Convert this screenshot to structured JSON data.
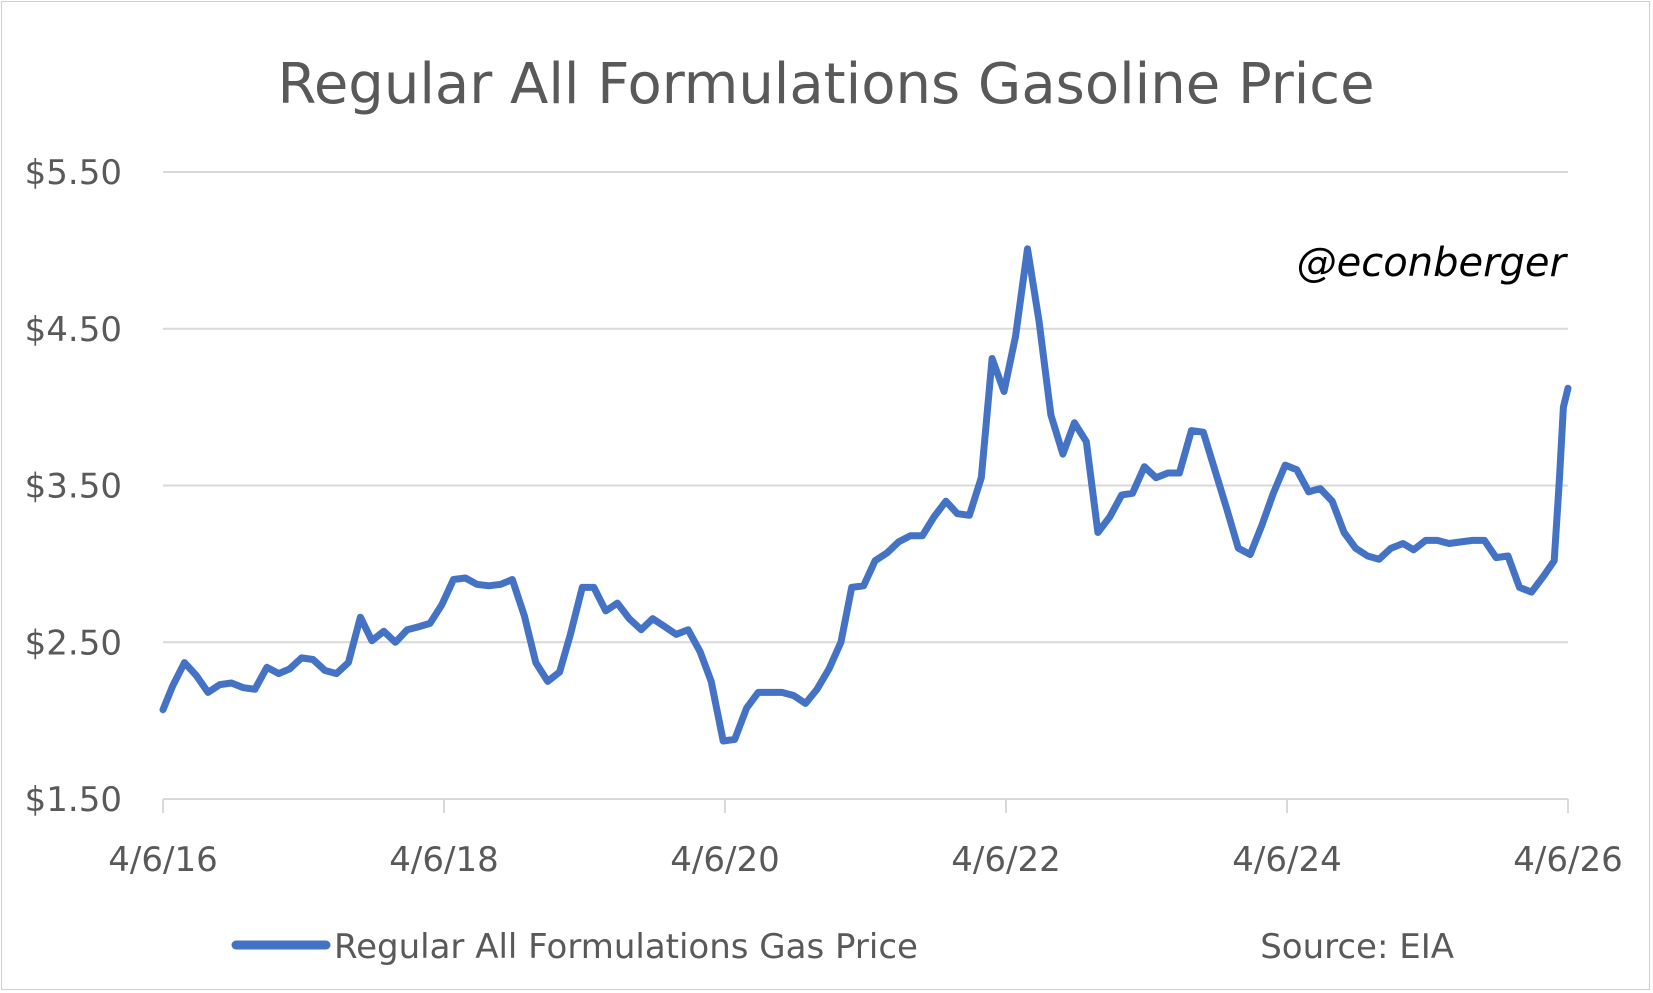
{
  "chart_data": {
    "type": "line",
    "title": "Regular All Formulations Gasoline Price",
    "annotation": "@econberger",
    "source": "Source: EIA",
    "xlabel": "",
    "ylabel": "",
    "x_ticks": [
      "4/6/16",
      "4/6/18",
      "4/6/20",
      "4/6/22",
      "4/6/24",
      "4/6/26"
    ],
    "y_ticks": [
      "$1.50",
      "$2.50",
      "$3.50",
      "$4.50",
      "$5.50"
    ],
    "ylim": [
      1.5,
      5.5
    ],
    "xlim": [
      "2016-04-06",
      "2026-04-06"
    ],
    "grid": true,
    "legend_position": "bottom",
    "colors": {
      "series": "#4472C4",
      "grid": "#d9d9d9",
      "text": "#595959"
    },
    "series": [
      {
        "name": "Regular All Formulations Gas Price",
        "points": [
          [
            "2016-04-06",
            2.07
          ],
          [
            "2016-05-01",
            2.22
          ],
          [
            "2016-06-01",
            2.37
          ],
          [
            "2016-07-01",
            2.29
          ],
          [
            "2016-08-01",
            2.18
          ],
          [
            "2016-09-01",
            2.23
          ],
          [
            "2016-10-01",
            2.24
          ],
          [
            "2016-11-01",
            2.21
          ],
          [
            "2016-12-01",
            2.2
          ],
          [
            "2017-01-01",
            2.34
          ],
          [
            "2017-02-01",
            2.3
          ],
          [
            "2017-03-01",
            2.33
          ],
          [
            "2017-04-01",
            2.4
          ],
          [
            "2017-05-01",
            2.39
          ],
          [
            "2017-06-01",
            2.32
          ],
          [
            "2017-07-01",
            2.3
          ],
          [
            "2017-08-01",
            2.37
          ],
          [
            "2017-09-01",
            2.66
          ],
          [
            "2017-10-01",
            2.51
          ],
          [
            "2017-11-01",
            2.57
          ],
          [
            "2017-12-01",
            2.5
          ],
          [
            "2018-01-01",
            2.58
          ],
          [
            "2018-02-01",
            2.6
          ],
          [
            "2018-03-01",
            2.62
          ],
          [
            "2018-04-01",
            2.74
          ],
          [
            "2018-05-01",
            2.9
          ],
          [
            "2018-06-01",
            2.91
          ],
          [
            "2018-07-01",
            2.87
          ],
          [
            "2018-08-01",
            2.86
          ],
          [
            "2018-09-01",
            2.87
          ],
          [
            "2018-10-01",
            2.9
          ],
          [
            "2018-11-01",
            2.67
          ],
          [
            "2018-12-01",
            2.37
          ],
          [
            "2019-01-01",
            2.25
          ],
          [
            "2019-02-01",
            2.31
          ],
          [
            "2019-03-01",
            2.55
          ],
          [
            "2019-04-01",
            2.85
          ],
          [
            "2019-05-01",
            2.85
          ],
          [
            "2019-06-01",
            2.7
          ],
          [
            "2019-07-01",
            2.75
          ],
          [
            "2019-08-01",
            2.65
          ],
          [
            "2019-09-01",
            2.58
          ],
          [
            "2019-10-01",
            2.65
          ],
          [
            "2019-11-01",
            2.6
          ],
          [
            "2019-12-01",
            2.55
          ],
          [
            "2020-01-01",
            2.58
          ],
          [
            "2020-02-01",
            2.44
          ],
          [
            "2020-03-01",
            2.25
          ],
          [
            "2020-04-01",
            1.87
          ],
          [
            "2020-05-01",
            1.88
          ],
          [
            "2020-06-01",
            2.08
          ],
          [
            "2020-07-01",
            2.18
          ],
          [
            "2020-08-01",
            2.18
          ],
          [
            "2020-09-01",
            2.18
          ],
          [
            "2020-10-01",
            2.16
          ],
          [
            "2020-11-01",
            2.11
          ],
          [
            "2020-12-01",
            2.2
          ],
          [
            "2021-01-01",
            2.33
          ],
          [
            "2021-02-01",
            2.5
          ],
          [
            "2021-03-01",
            2.85
          ],
          [
            "2021-04-01",
            2.86
          ],
          [
            "2021-05-01",
            3.02
          ],
          [
            "2021-06-01",
            3.07
          ],
          [
            "2021-07-01",
            3.14
          ],
          [
            "2021-08-01",
            3.18
          ],
          [
            "2021-09-01",
            3.18
          ],
          [
            "2021-10-01",
            3.3
          ],
          [
            "2021-11-01",
            3.4
          ],
          [
            "2021-12-01",
            3.32
          ],
          [
            "2022-01-01",
            3.31
          ],
          [
            "2022-02-01",
            3.55
          ],
          [
            "2022-03-01",
            4.31
          ],
          [
            "2022-04-01",
            4.1
          ],
          [
            "2022-05-01",
            4.45
          ],
          [
            "2022-06-01",
            5.01
          ],
          [
            "2022-07-01",
            4.55
          ],
          [
            "2022-08-01",
            3.95
          ],
          [
            "2022-09-01",
            3.7
          ],
          [
            "2022-10-01",
            3.9
          ],
          [
            "2022-11-01",
            3.78
          ],
          [
            "2022-12-01",
            3.2
          ],
          [
            "2023-01-01",
            3.3
          ],
          [
            "2023-02-01",
            3.44
          ],
          [
            "2023-03-01",
            3.45
          ],
          [
            "2023-04-01",
            3.62
          ],
          [
            "2023-05-01",
            3.55
          ],
          [
            "2023-06-01",
            3.58
          ],
          [
            "2023-07-01",
            3.58
          ],
          [
            "2023-08-01",
            3.85
          ],
          [
            "2023-09-01",
            3.84
          ],
          [
            "2023-10-01",
            3.6
          ],
          [
            "2023-11-01",
            3.35
          ],
          [
            "2023-12-01",
            3.1
          ],
          [
            "2024-01-01",
            3.06
          ],
          [
            "2024-02-01",
            3.25
          ],
          [
            "2024-03-01",
            3.45
          ],
          [
            "2024-04-01",
            3.63
          ],
          [
            "2024-05-01",
            3.6
          ],
          [
            "2024-06-01",
            3.46
          ],
          [
            "2024-07-01",
            3.48
          ],
          [
            "2024-08-01",
            3.4
          ],
          [
            "2024-09-01",
            3.2
          ],
          [
            "2024-10-01",
            3.1
          ],
          [
            "2024-11-01",
            3.05
          ],
          [
            "2024-12-01",
            3.03
          ],
          [
            "2025-01-01",
            3.1
          ],
          [
            "2025-02-01",
            3.13
          ],
          [
            "2025-03-01",
            3.09
          ],
          [
            "2025-04-01",
            3.15
          ],
          [
            "2025-05-01",
            3.15
          ],
          [
            "2025-06-01",
            3.13
          ],
          [
            "2025-07-01",
            3.14
          ],
          [
            "2025-08-01",
            3.15
          ],
          [
            "2025-09-01",
            3.15
          ],
          [
            "2025-10-01",
            3.04
          ],
          [
            "2025-11-01",
            3.05
          ],
          [
            "2025-12-01",
            2.85
          ],
          [
            "2026-01-01",
            2.82
          ],
          [
            "2026-02-01",
            2.92
          ],
          [
            "2026-03-01",
            3.02
          ],
          [
            "2026-03-15",
            3.55
          ],
          [
            "2026-03-25",
            4.0
          ],
          [
            "2026-04-06",
            4.12
          ]
        ]
      }
    ]
  }
}
